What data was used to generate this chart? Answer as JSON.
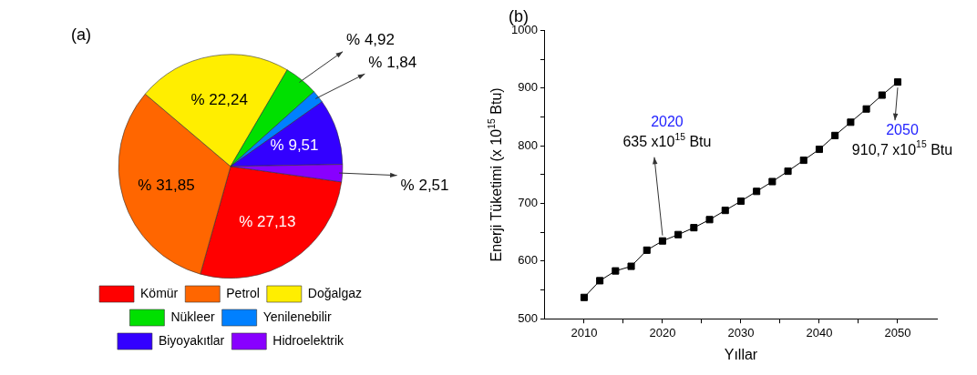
{
  "chart_data": [
    {
      "type": "pie",
      "title": "(a)",
      "categories": [
        "Kömür",
        "Petrol",
        "Doğalgaz",
        "Nükleer",
        "Yenilenebilir",
        "Biyoyakıtlar",
        "Hidroelektrik"
      ],
      "values": [
        27.13,
        31.85,
        22.24,
        4.92,
        1.84,
        9.51,
        2.51
      ],
      "colors": [
        "#ff0000",
        "#ff6600",
        "#ffee00",
        "#00e000",
        "#0080ff",
        "#3300ff",
        "#8800ff"
      ],
      "value_labels": [
        "% 27,13",
        "% 31,85",
        "% 22,24",
        "% 4,92",
        "% 1,84",
        "% 9,51",
        "% 2,51"
      ],
      "legend": "bottom"
    },
    {
      "type": "line",
      "title": "(b)",
      "xlabel": "Yıllar",
      "ylabel": "Enerji Tüketimi (x 10$^{15}$ Btu)",
      "x": [
        2010,
        2012,
        2014,
        2016,
        2018,
        2020,
        2022,
        2024,
        2026,
        2028,
        2030,
        2032,
        2034,
        2036,
        2038,
        2040,
        2042,
        2044,
        2046,
        2048,
        2050
      ],
      "values": [
        537,
        566,
        583,
        591,
        619,
        635,
        646,
        658,
        672,
        688,
        704,
        721,
        738,
        756,
        775,
        794,
        818,
        841,
        864,
        888,
        910.7
      ],
      "color": "#000000",
      "marker": "square",
      "line_style": "solid",
      "xlim": [
        2005,
        2055
      ],
      "xticks": [
        2010,
        {
          "value": 2015,
          "label": null
        },
        2020,
        {
          "value": 2025,
          "label": null
        },
        2030,
        {
          "value": 2035,
          "label": null
        },
        2040,
        {
          "value": 2045,
          "label": null
        },
        2050
      ],
      "ylim": [
        500,
        1000
      ],
      "yticks": [
        500,
        {
          "value": 550,
          "label": null
        },
        600,
        {
          "value": 650,
          "label": null
        },
        700,
        {
          "value": 750,
          "label": null
        },
        800,
        {
          "value": 850,
          "label": null
        },
        900,
        {
          "value": 950,
          "label": null
        },
        1000
      ],
      "annotations": [
        "2020",
        {
          "text": "635 x10$^{15}$ Btu",
          "x": 2020,
          "y": 635
        },
        {
          "text": "2050",
          "x": 2050,
          "y": 910.7
        },
        "910,7 x10$^{15}$ Btu"
      ]
    }
  ]
}
